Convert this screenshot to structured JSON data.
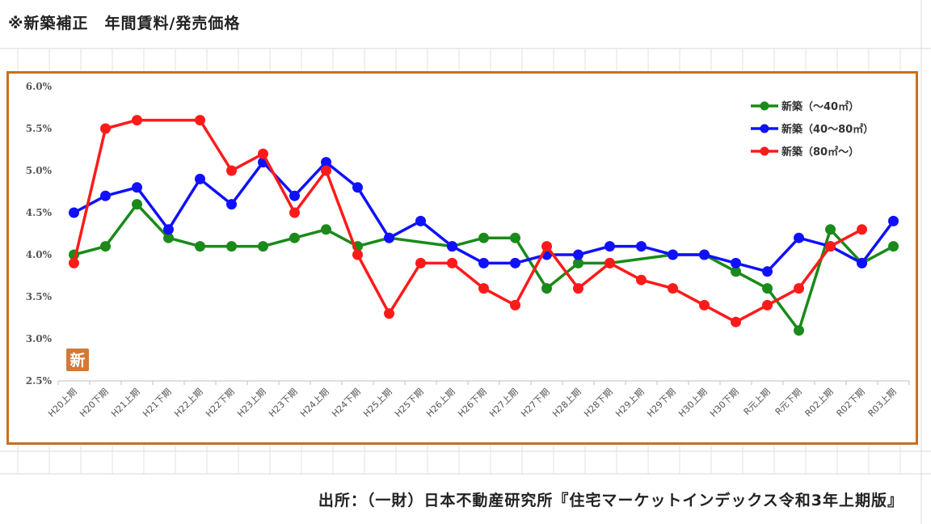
{
  "page": {
    "title": "※新築補正　年間賃料/発売価格",
    "source": "出所：（一財）日本不動産研究所『住宅マーケットインデックス令和3年上期版』",
    "badge": "新"
  },
  "colors": {
    "frame": "#c8701e",
    "green": "#1a8a1a",
    "blue": "#1010ff",
    "red": "#ff1a1a",
    "badge_bg": "#d07a3a"
  },
  "chart_data": {
    "type": "line",
    "title": "",
    "xlabel": "",
    "ylabel": "",
    "ylim": [
      2.5,
      6.0
    ],
    "yticks": [
      "2.5%",
      "3.0%",
      "3.5%",
      "4.0%",
      "4.5%",
      "5.0%",
      "5.5%",
      "6.0%"
    ],
    "grid": "none",
    "legend_position": "top-right",
    "categories": [
      "H20上期",
      "H20下期",
      "H21上期",
      "H21下期",
      "H22上期",
      "H22下期",
      "H23上期",
      "H23下期",
      "H24上期",
      "H24下期",
      "H25上期",
      "H25下期",
      "H26上期",
      "H26下期",
      "H27上期",
      "H27下期",
      "H28上期",
      "H28下期",
      "H29上期",
      "H29下期",
      "H30上期",
      "H30下期",
      "R元上期",
      "R元下期",
      "R02上期",
      "R02下期",
      "R03上期"
    ],
    "series": [
      {
        "name": "新築（～40㎡）",
        "color": "#1a8a1a",
        "values": [
          4.0,
          4.1,
          4.6,
          4.2,
          4.1,
          4.1,
          4.1,
          4.2,
          4.3,
          4.1,
          4.2,
          null,
          4.1,
          4.2,
          4.2,
          3.6,
          3.9,
          3.9,
          null,
          4.0,
          4.0,
          3.8,
          3.6,
          3.1,
          4.3,
          3.9,
          4.1
        ]
      },
      {
        "name": "新築（40～80㎡）",
        "color": "#1010ff",
        "values": [
          4.5,
          4.7,
          4.8,
          4.3,
          4.9,
          4.6,
          5.1,
          4.7,
          5.1,
          4.8,
          4.2,
          4.4,
          4.1,
          3.9,
          3.9,
          4.0,
          4.0,
          4.1,
          4.1,
          4.0,
          4.0,
          3.9,
          3.8,
          4.2,
          4.1,
          3.9,
          4.4
        ]
      },
      {
        "name": "新築（80㎡～）",
        "color": "#ff1a1a",
        "values": [
          3.9,
          5.5,
          5.6,
          null,
          5.6,
          5.0,
          5.2,
          4.5,
          5.0,
          4.0,
          3.3,
          3.9,
          3.9,
          3.6,
          3.4,
          4.1,
          3.6,
          3.9,
          3.7,
          3.6,
          3.4,
          3.2,
          3.4,
          3.6,
          4.1,
          4.3,
          null
        ]
      }
    ]
  }
}
